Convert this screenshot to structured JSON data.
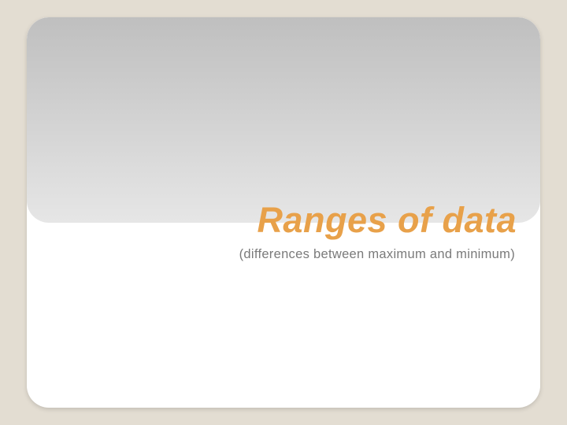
{
  "slide": {
    "title": "Ranges of data",
    "subtitle": "(differences between maximum and minimum)",
    "title_color": "#e8a14a",
    "subtitle_color": "#7a7a7a",
    "background_color": "#e3ddd2",
    "card_color": "#ffffff",
    "panel_gradient_top": "#bfbfbf",
    "panel_gradient_bottom": "#e6e6e6",
    "title_fontsize": 45,
    "subtitle_fontsize": 16.5,
    "card_radius": 28
  }
}
